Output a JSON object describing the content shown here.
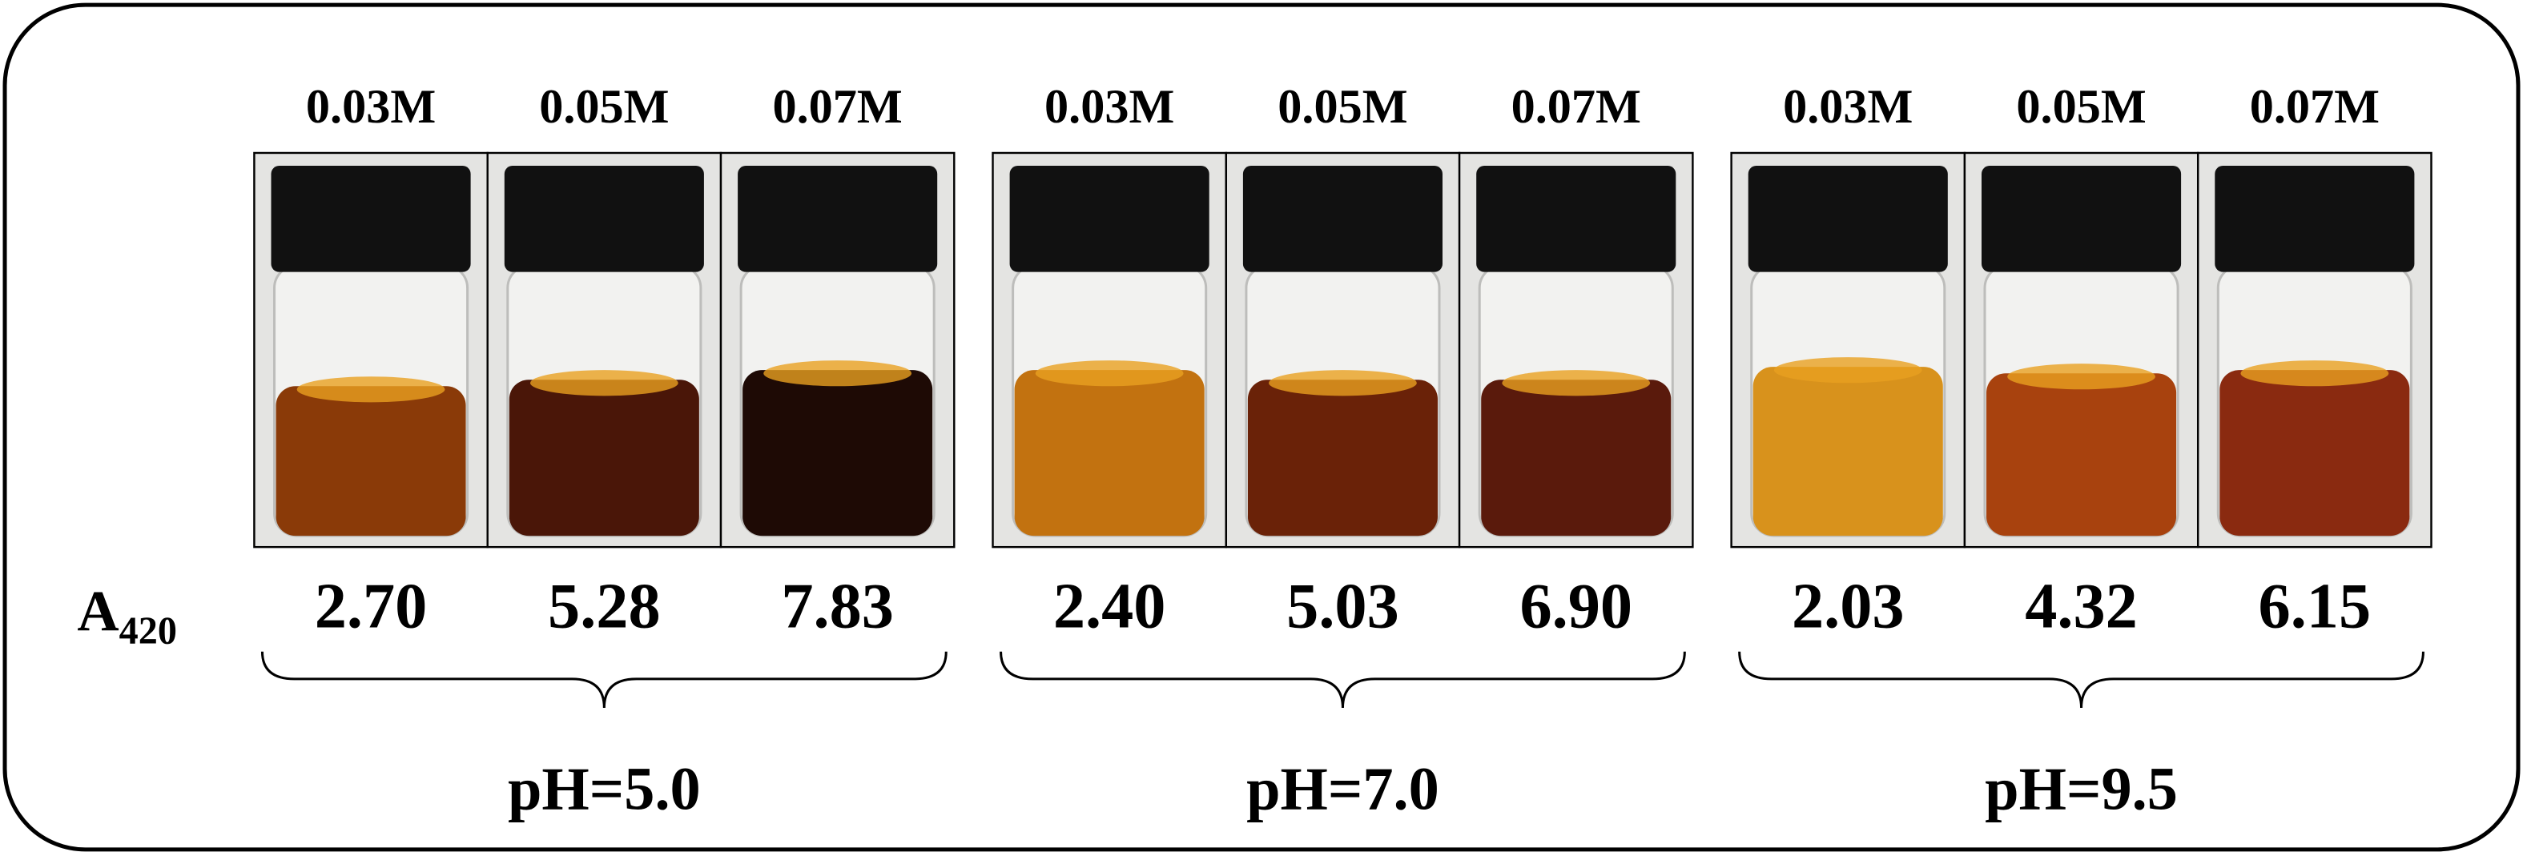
{
  "row_label": {
    "main": "A",
    "sub": "420"
  },
  "groups": [
    {
      "label": "pH=5.0",
      "vials": [
        {
          "concentration": "0.03M",
          "absorbance": "2.70"
        },
        {
          "concentration": "0.05M",
          "absorbance": "5.28"
        },
        {
          "concentration": "0.07M",
          "absorbance": "7.83"
        }
      ]
    },
    {
      "label": "pH=7.0",
      "vials": [
        {
          "concentration": "0.03M",
          "absorbance": "2.40"
        },
        {
          "concentration": "0.05M",
          "absorbance": "5.03"
        },
        {
          "concentration": "0.07M",
          "absorbance": "6.90"
        }
      ]
    },
    {
      "label": "pH=9.5",
      "vials": [
        {
          "concentration": "0.03M",
          "absorbance": "2.03"
        },
        {
          "concentration": "0.05M",
          "absorbance": "4.32"
        },
        {
          "concentration": "0.07M",
          "absorbance": "6.15"
        }
      ]
    }
  ]
}
